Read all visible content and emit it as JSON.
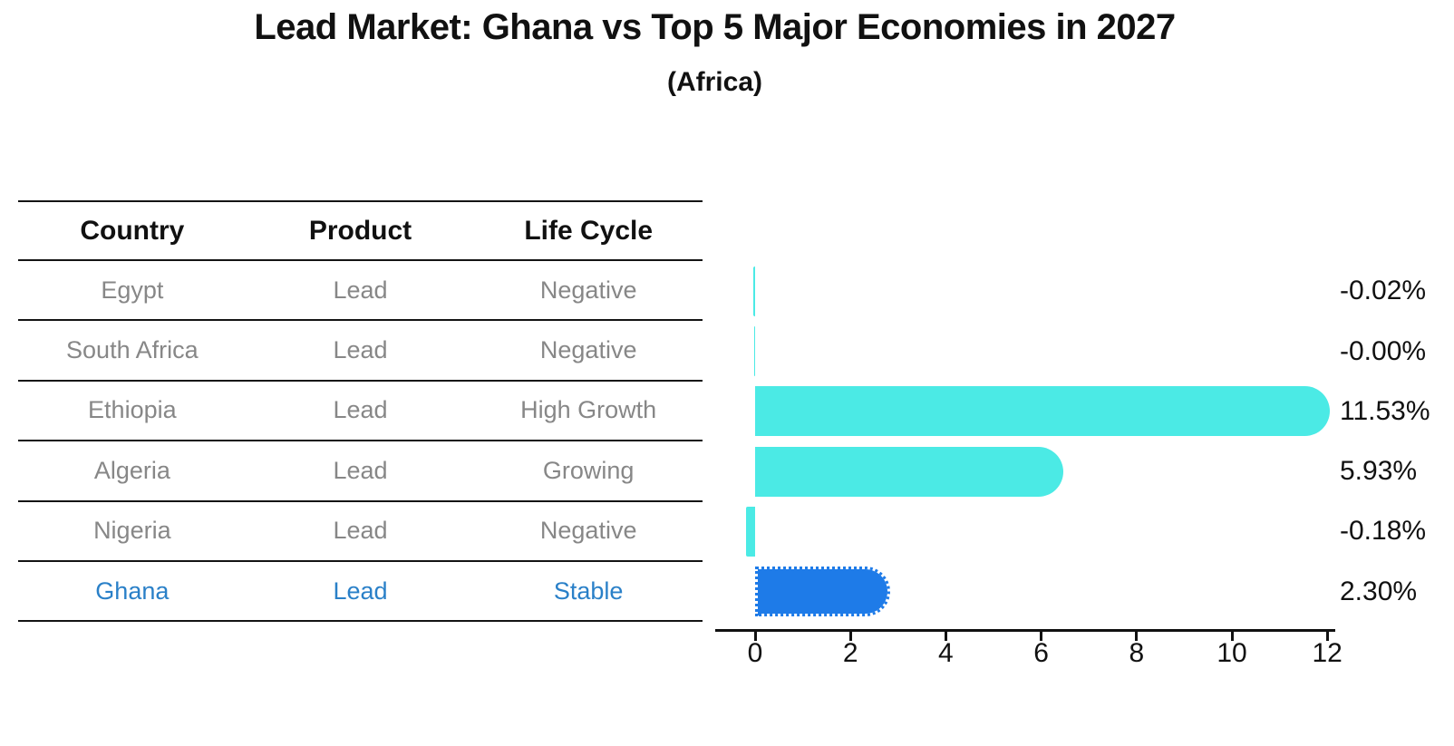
{
  "page": {
    "title": "Lead Market: Ghana vs Top 5 Major Economies in 2027",
    "subtitle": "(Africa)"
  },
  "table": {
    "columns": [
      "Country",
      "Product",
      "Life Cycle"
    ],
    "rows": [
      {
        "country": "Egypt",
        "product": "Lead",
        "life_cycle": "Negative",
        "highlighted": false
      },
      {
        "country": "South Africa",
        "product": "Lead",
        "life_cycle": "Negative",
        "highlighted": false
      },
      {
        "country": "Ethiopia",
        "product": "Lead",
        "life_cycle": "High Growth",
        "highlighted": false
      },
      {
        "country": "Algeria",
        "product": "Lead",
        "life_cycle": "Growing",
        "highlighted": false
      },
      {
        "country": "Nigeria",
        "product": "Lead",
        "life_cycle": "Negative",
        "highlighted": false
      },
      {
        "country": "Ghana",
        "product": "Lead",
        "life_cycle": "Stable",
        "highlighted": true
      }
    ]
  },
  "chart_data": {
    "type": "bar",
    "orientation": "horizontal",
    "title": "Lead Market: Ghana vs Top 5 Major Economies in 2027",
    "subtitle": "(Africa)",
    "categories": [
      "Egypt",
      "South Africa",
      "Ethiopia",
      "Algeria",
      "Nigeria",
      "Ghana"
    ],
    "values": [
      -0.02,
      -0.0,
      11.53,
      5.93,
      -0.18,
      2.3
    ],
    "value_labels": [
      "-0.02%",
      "-0.00%",
      "11.53%",
      "5.93%",
      "-0.18%",
      "2.30%"
    ],
    "xlabel": "",
    "ylabel": "",
    "xticks": [
      0,
      2,
      4,
      6,
      8,
      10,
      12
    ],
    "xlim": [
      -0.85,
      12.15
    ],
    "grid": false,
    "legend": false,
    "highlight_index": 5,
    "colors": {
      "bar_default": "#4BEAE5",
      "bar_highlight": "#1E7BE8",
      "highlight_text": "#2A80C8",
      "table_text": "#878787",
      "header_text": "#111111",
      "axis": "#111111"
    }
  }
}
